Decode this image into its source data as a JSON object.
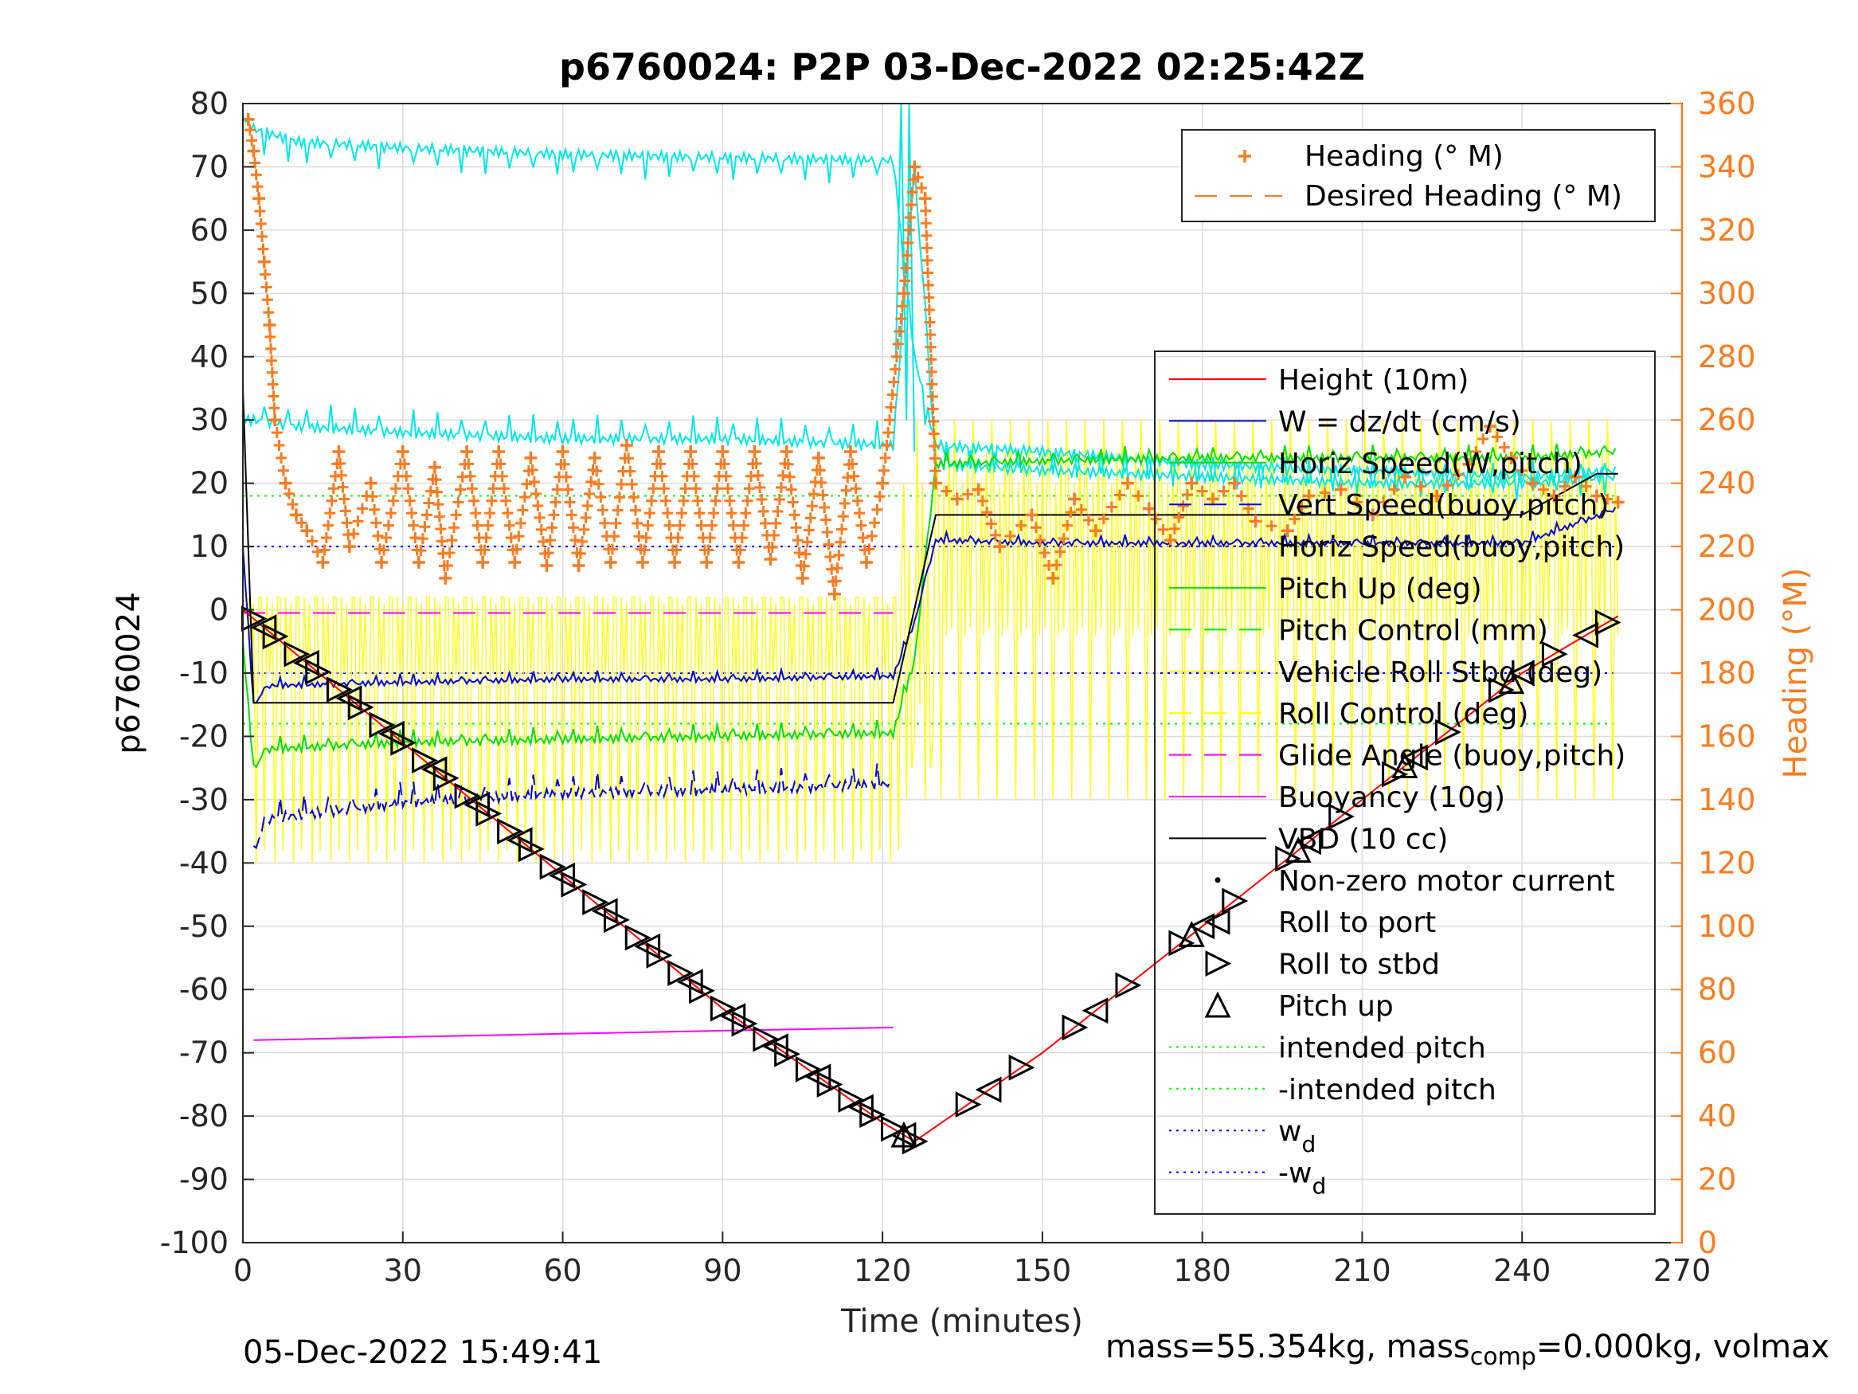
{
  "chart_data": {
    "type": "line",
    "title": "p6760024: P2P 03-Dec-2022 02:25:42Z",
    "xlabel": "Time (minutes)",
    "ylabel": "p6760024",
    "y2label": "Heading (°M)",
    "xlim": [
      0,
      270
    ],
    "ylim": [
      -100,
      80
    ],
    "y2lim": [
      0,
      360
    ],
    "xticks": [
      "0",
      "30",
      "60",
      "90",
      "120",
      "150",
      "180",
      "210",
      "240",
      "270"
    ],
    "yticks": [
      "80",
      "70",
      "60",
      "50",
      "40",
      "30",
      "20",
      "10",
      "0",
      "-10",
      "-20",
      "-30",
      "-40",
      "-50",
      "-60",
      "-70",
      "-80",
      "-90",
      "-100"
    ],
    "y2ticks": [
      "360",
      "340",
      "320",
      "300",
      "280",
      "260",
      "240",
      "220",
      "200",
      "180",
      "160",
      "140",
      "120",
      "100",
      "80",
      "60",
      "40",
      "20",
      "0"
    ],
    "grid": true,
    "colors": {
      "height": "#ff0000",
      "w": "#0000cc",
      "horiz_speed": "#00dd00",
      "pitch": "#00ee00",
      "roll": "#ffff00",
      "glide": "#ff00ff",
      "buoyancy": "#ff00ff",
      "vbd": "#000000",
      "heading": "#f97c22",
      "vert_speed_buoy": "#00e5e5",
      "wd": "#0000ff",
      "intended": "#00ff00"
    },
    "legend_heading": {
      "placement": "top-right",
      "entries": [
        "Heading (° M)",
        "Desired Heading (° M)"
      ]
    },
    "legend_main": {
      "placement": "right",
      "entries": [
        {
          "label": "Height (10m)"
        },
        {
          "label": "W = dz/dt (cm/s)"
        },
        {
          "label": "Horiz Speed(W,pitch)"
        },
        {
          "label": "Vert Speed(buoy,pitch)"
        },
        {
          "label": "Horiz Speed(buoy,pitch)"
        },
        {
          "label": "Pitch Up (deg)"
        },
        {
          "label": "Pitch Control (mm)"
        },
        {
          "label": "Vehicle Roll Stbd (deg)"
        },
        {
          "label": "Roll Control (deg)"
        },
        {
          "label": "Glide Angle (buoy,pitch)"
        },
        {
          "label": "Buoyancy (10g)"
        },
        {
          "label": "VBD (10 cc)"
        },
        {
          "label": "Non-zero motor current"
        },
        {
          "label": "Roll to port"
        },
        {
          "label": "Roll to stbd"
        },
        {
          "label": "Pitch up"
        },
        {
          "label": "intended pitch"
        },
        {
          "label": "-intended pitch"
        },
        {
          "label": "w",
          "sub": "d"
        },
        {
          "label": "-w",
          "sub": "d"
        }
      ]
    },
    "series": [
      {
        "name": "Height (10m)",
        "x": [
          0,
          30,
          60,
          90,
          120,
          126,
          150,
          180,
          210,
          240,
          258
        ],
        "y": [
          0,
          -21,
          -42,
          -63,
          -81,
          -84,
          -70,
          -50,
          -30,
          -10,
          -1
        ]
      },
      {
        "name": "W = dz/dt (cm/s)",
        "x": [
          0,
          2,
          5,
          30,
          60,
          90,
          122,
          126,
          130,
          150,
          180,
          210,
          240,
          258
        ],
        "y": [
          10,
          -15,
          -12,
          -11.5,
          -11,
          -11,
          -10.5,
          -2,
          11,
          10.5,
          10.5,
          10.5,
          10.5,
          16
        ]
      },
      {
        "name": "Horiz Speed(W,pitch)",
        "x": [
          0,
          2,
          5,
          30,
          60,
          90,
          122,
          126,
          130,
          150,
          180,
          210,
          240,
          258
        ],
        "y": [
          -5,
          -25,
          -22,
          -21,
          -20.5,
          -20,
          -19.5,
          -8,
          23,
          23.5,
          24,
          24,
          24,
          25
        ]
      },
      {
        "name": "Vert Speed(buoy,pitch)",
        "x": [
          2,
          5,
          30,
          60,
          90,
          122
        ],
        "y": [
          -38,
          -33,
          -30.5,
          -29,
          -28.5,
          -27.5
        ]
      },
      {
        "name": "Horiz Speed(buoy,pitch)",
        "x": [
          0,
          2,
          10,
          30,
          60,
          90,
          122,
          126,
          130,
          150,
          180,
          210,
          240,
          258
        ],
        "y": [
          30,
          30,
          29,
          28,
          27,
          27,
          26,
          70,
          23,
          22,
          21,
          20,
          20,
          21
        ]
      },
      {
        "name": "Pitch Up (deg)",
        "x": [
          0,
          2,
          10,
          30,
          60,
          90,
          122,
          126,
          130,
          150,
          180,
          210,
          240,
          258
        ],
        "y": [
          78,
          76,
          74,
          73,
          72,
          71.5,
          71,
          40,
          26,
          25,
          23,
          22,
          21,
          22
        ]
      },
      {
        "name": "Glide Angle (buoy,pitch)",
        "x": [
          0,
          122
        ],
        "y": [
          -0.5,
          -0.5
        ]
      },
      {
        "name": "Buoyancy (10g)",
        "x": [
          2,
          30,
          60,
          90,
          122
        ],
        "y": [
          -68,
          -67.5,
          -67,
          -66.5,
          -66
        ]
      },
      {
        "name": "VBD (10 cc)",
        "x": [
          0,
          2,
          122,
          130,
          240,
          254,
          258
        ],
        "y": [
          35,
          -14.7,
          -14.7,
          15,
          15,
          21.5,
          21.5
        ]
      },
      {
        "name": "w_d",
        "y": 10
      },
      {
        "name": "-w_d",
        "y": -10
      },
      {
        "name": "intended pitch",
        "y": 18
      },
      {
        "name": "-intended pitch",
        "y": -18
      }
    ],
    "heading_series": {
      "name": "Heading (° M)",
      "points": [
        [
          1,
          355
        ],
        [
          2,
          345
        ],
        [
          3,
          330
        ],
        [
          4,
          310
        ],
        [
          5,
          290
        ],
        [
          6,
          260
        ],
        [
          8,
          240
        ],
        [
          10,
          230
        ],
        [
          12,
          225
        ],
        [
          15,
          215
        ],
        [
          18,
          250
        ],
        [
          20,
          220
        ],
        [
          24,
          240
        ],
        [
          26,
          215
        ],
        [
          30,
          250
        ],
        [
          33,
          215
        ],
        [
          36,
          245
        ],
        [
          38,
          210
        ],
        [
          42,
          250
        ],
        [
          45,
          215
        ],
        [
          48,
          250
        ],
        [
          51,
          215
        ],
        [
          54,
          248
        ],
        [
          57,
          214
        ],
        [
          60,
          250
        ],
        [
          63,
          214
        ],
        [
          66,
          248
        ],
        [
          69,
          215
        ],
        [
          72,
          252
        ],
        [
          75,
          215
        ],
        [
          78,
          250
        ],
        [
          81,
          215
        ],
        [
          84,
          250
        ],
        [
          87,
          215
        ],
        [
          90,
          250
        ],
        [
          93,
          215
        ],
        [
          96,
          250
        ],
        [
          99,
          216
        ],
        [
          102,
          250
        ],
        [
          105,
          210
        ],
        [
          108,
          248
        ],
        [
          111,
          205
        ],
        [
          114,
          250
        ],
        [
          117,
          215
        ],
        [
          120,
          240
        ],
        [
          124,
          300
        ],
        [
          126,
          340
        ],
        [
          128,
          330
        ],
        [
          130,
          240
        ],
        [
          134,
          235
        ],
        [
          138,
          238
        ],
        [
          142,
          220
        ],
        [
          148,
          230
        ],
        [
          152,
          210
        ],
        [
          156,
          235
        ],
        [
          160,
          225
        ],
        [
          166,
          240
        ],
        [
          170,
          232
        ],
        [
          174,
          222
        ],
        [
          178,
          240
        ],
        [
          182,
          235
        ],
        [
          186,
          240
        ],
        [
          190,
          228
        ],
        [
          196,
          225
        ],
        [
          200,
          236
        ],
        [
          206,
          238
        ],
        [
          212,
          230
        ],
        [
          218,
          242
        ],
        [
          224,
          236
        ],
        [
          230,
          246
        ],
        [
          234,
          258
        ],
        [
          238,
          248
        ],
        [
          242,
          240
        ],
        [
          246,
          236
        ],
        [
          250,
          242
        ],
        [
          254,
          236
        ],
        [
          258,
          234
        ]
      ]
    },
    "markers": {
      "roll_to_stbd_x": [
        2,
        6,
        10,
        14,
        18,
        22,
        26,
        30,
        34,
        38,
        42,
        46,
        50,
        54,
        58,
        62,
        66,
        70,
        74,
        78,
        82,
        86,
        90,
        94,
        98,
        102,
        106,
        110,
        114,
        118,
        122,
        126,
        136,
        146,
        156,
        166,
        176,
        186,
        196,
        206,
        216,
        226,
        236,
        246,
        256
      ],
      "roll_to_port_x": [
        4,
        12,
        20,
        28,
        36,
        44,
        52,
        60,
        68,
        76,
        84,
        92,
        100,
        108,
        116,
        124,
        140,
        160,
        180,
        200,
        220,
        240,
        252
      ],
      "pitch_up_x": [
        124,
        178,
        198,
        218,
        238
      ]
    }
  },
  "footer": {
    "timestamp": "05-Dec-2022 15:49:41",
    "mass_prefix": "mass=55.354kg, mass",
    "mass_sub": "comp",
    "mass_suffix": "=0.000kg, volmax"
  }
}
